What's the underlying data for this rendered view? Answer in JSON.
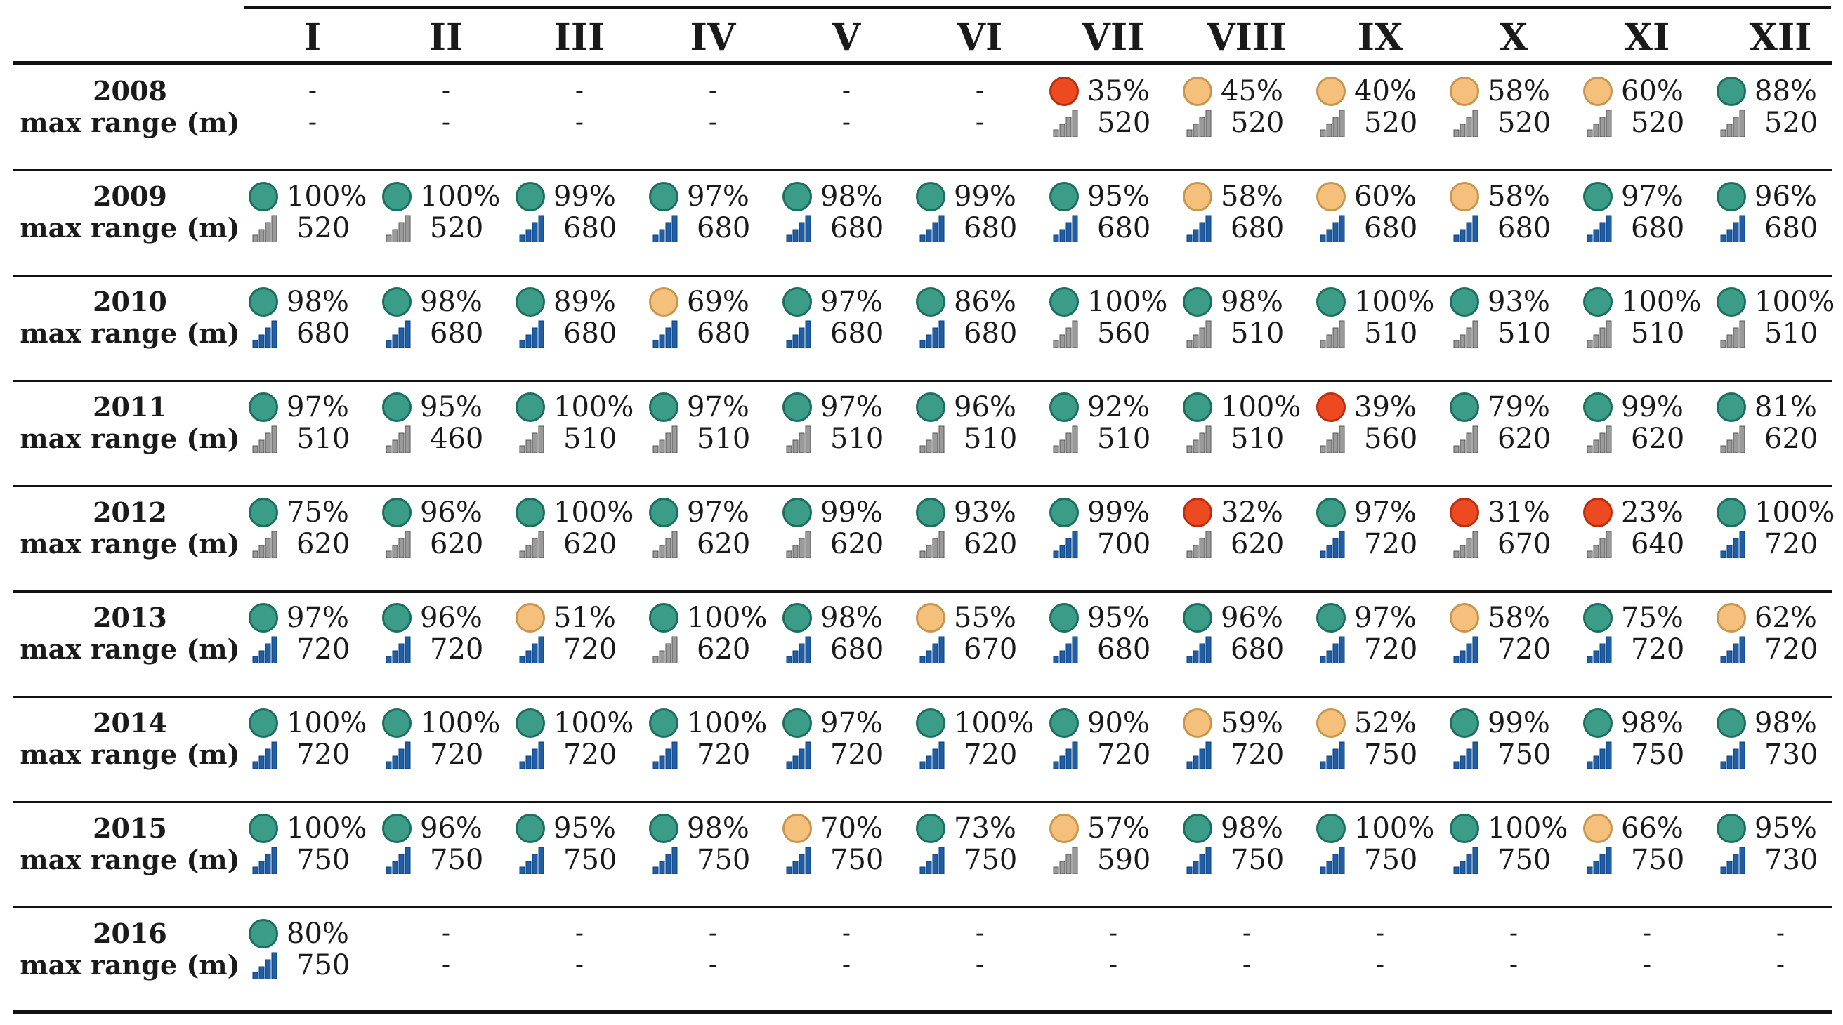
{
  "months": [
    "I",
    "II",
    "III",
    "IV",
    "V",
    "VI",
    "VII",
    "VIII",
    "IX",
    "X",
    "XI",
    "XII"
  ],
  "range_label": "max range (m)",
  "colors": {
    "green": "#3b9c88",
    "orange": "#f5c07c",
    "red": "#ee4a22",
    "signal_blue": "#1f5fa8",
    "signal_gray": "#9a9a9a"
  },
  "years": [
    {
      "year": "2008",
      "pct": [
        "-",
        "-",
        "-",
        "-",
        "-",
        "-",
        "35%",
        "45%",
        "40%",
        "58%",
        "60%",
        "88%"
      ],
      "status": [
        "",
        "",
        "",
        "",
        "",
        "",
        "red",
        "orange",
        "orange",
        "orange",
        "orange",
        "green"
      ],
      "range": [
        "-",
        "-",
        "-",
        "-",
        "-",
        "-",
        "520",
        "520",
        "520",
        "520",
        "520",
        "520"
      ],
      "signal": [
        "",
        "",
        "",
        "",
        "",
        "",
        "g",
        "g",
        "g",
        "g",
        "g",
        "g"
      ]
    },
    {
      "year": "2009",
      "pct": [
        "100%",
        "100%",
        "99%",
        "97%",
        "98%",
        "99%",
        "95%",
        "58%",
        "60%",
        "58%",
        "97%",
        "96%"
      ],
      "status": [
        "green",
        "green",
        "green",
        "green",
        "green",
        "green",
        "green",
        "orange",
        "orange",
        "orange",
        "green",
        "green"
      ],
      "range": [
        "520",
        "520",
        "680",
        "680",
        "680",
        "680",
        "680",
        "680",
        "680",
        "680",
        "680",
        "680"
      ],
      "signal": [
        "g",
        "g",
        "b",
        "b",
        "b",
        "b",
        "b",
        "b",
        "b",
        "b",
        "b",
        "b"
      ]
    },
    {
      "year": "2010",
      "pct": [
        "98%",
        "98%",
        "89%",
        "69%",
        "97%",
        "86%",
        "100%",
        "98%",
        "100%",
        "93%",
        "100%",
        "100%"
      ],
      "status": [
        "green",
        "green",
        "green",
        "orange",
        "green",
        "green",
        "green",
        "green",
        "green",
        "green",
        "green",
        "green"
      ],
      "range": [
        "680",
        "680",
        "680",
        "680",
        "680",
        "680",
        "560",
        "510",
        "510",
        "510",
        "510",
        "510"
      ],
      "signal": [
        "b",
        "b",
        "b",
        "b",
        "b",
        "b",
        "g",
        "g",
        "g",
        "g",
        "g",
        "g"
      ]
    },
    {
      "year": "2011",
      "pct": [
        "97%",
        "95%",
        "100%",
        "97%",
        "97%",
        "96%",
        "92%",
        "100%",
        "39%",
        "79%",
        "99%",
        "81%"
      ],
      "status": [
        "green",
        "green",
        "green",
        "green",
        "green",
        "green",
        "green",
        "green",
        "red",
        "green",
        "green",
        "green"
      ],
      "range": [
        "510",
        "460",
        "510",
        "510",
        "510",
        "510",
        "510",
        "510",
        "560",
        "620",
        "620",
        "620"
      ],
      "signal": [
        "g",
        "g",
        "g",
        "g",
        "g",
        "g",
        "g",
        "g",
        "g",
        "g",
        "g",
        "g"
      ]
    },
    {
      "year": "2012",
      "pct": [
        "75%",
        "96%",
        "100%",
        "97%",
        "99%",
        "93%",
        "99%",
        "32%",
        "97%",
        "31%",
        "23%",
        "100%"
      ],
      "status": [
        "green",
        "green",
        "green",
        "green",
        "green",
        "green",
        "green",
        "red",
        "green",
        "red",
        "red",
        "green"
      ],
      "range": [
        "620",
        "620",
        "620",
        "620",
        "620",
        "620",
        "700",
        "620",
        "720",
        "670",
        "640",
        "720"
      ],
      "signal": [
        "g",
        "g",
        "g",
        "g",
        "g",
        "g",
        "b",
        "g",
        "b",
        "g",
        "g",
        "b"
      ]
    },
    {
      "year": "2013",
      "pct": [
        "97%",
        "96%",
        "51%",
        "100%",
        "98%",
        "55%",
        "95%",
        "96%",
        "97%",
        "58%",
        "75%",
        "62%"
      ],
      "status": [
        "green",
        "green",
        "orange",
        "green",
        "green",
        "orange",
        "green",
        "green",
        "green",
        "orange",
        "green",
        "orange"
      ],
      "range": [
        "720",
        "720",
        "720",
        "620",
        "680",
        "670",
        "680",
        "680",
        "720",
        "720",
        "720",
        "720"
      ],
      "signal": [
        "b",
        "b",
        "b",
        "g",
        "b",
        "b",
        "b",
        "b",
        "b",
        "b",
        "b",
        "b"
      ]
    },
    {
      "year": "2014",
      "pct": [
        "100%",
        "100%",
        "100%",
        "100%",
        "97%",
        "100%",
        "90%",
        "59%",
        "52%",
        "99%",
        "98%",
        "98%"
      ],
      "status": [
        "green",
        "green",
        "green",
        "green",
        "green",
        "green",
        "green",
        "orange",
        "orange",
        "green",
        "green",
        "green"
      ],
      "range": [
        "720",
        "720",
        "720",
        "720",
        "720",
        "720",
        "720",
        "720",
        "750",
        "750",
        "750",
        "730"
      ],
      "signal": [
        "b",
        "b",
        "b",
        "b",
        "b",
        "b",
        "b",
        "b",
        "b",
        "b",
        "b",
        "b"
      ]
    },
    {
      "year": "2015",
      "pct": [
        "100%",
        "96%",
        "95%",
        "98%",
        "70%",
        "73%",
        "57%",
        "98%",
        "100%",
        "100%",
        "66%",
        "95%"
      ],
      "status": [
        "green",
        "green",
        "green",
        "green",
        "orange",
        "green",
        "orange",
        "green",
        "green",
        "green",
        "orange",
        "green"
      ],
      "range": [
        "750",
        "750",
        "750",
        "750",
        "750",
        "750",
        "590",
        "750",
        "750",
        "750",
        "750",
        "730"
      ],
      "signal": [
        "b",
        "b",
        "b",
        "b",
        "b",
        "b",
        "g",
        "b",
        "b",
        "b",
        "b",
        "b"
      ]
    },
    {
      "year": "2016",
      "pct": [
        "80%",
        "-",
        "-",
        "-",
        "-",
        "-",
        "-",
        "-",
        "-",
        "-",
        "-",
        "-"
      ],
      "status": [
        "green",
        "",
        "",
        "",
        "",
        "",
        "",
        "",
        "",
        "",
        "",
        ""
      ],
      "range": [
        "750",
        "-",
        "-",
        "-",
        "-",
        "-",
        "-",
        "-",
        "-",
        "-",
        "-",
        "-"
      ],
      "signal": [
        "b",
        "",
        "",
        "",
        "",
        "",
        "",
        "",
        "",
        "",
        "",
        ""
      ]
    }
  ]
}
